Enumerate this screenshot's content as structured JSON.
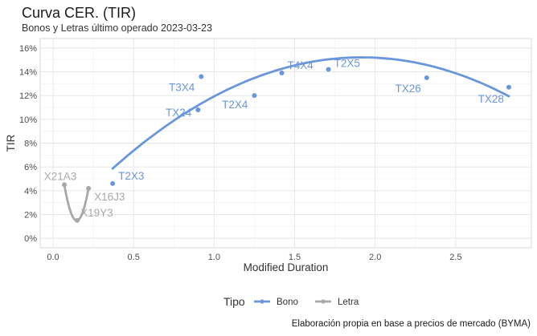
{
  "chart_data": {
    "type": "scatter",
    "title": "Curva CER. (TIR)",
    "subtitle": "Bonos y Letras último operado 2023-03-23",
    "caption": "Elaboración propia en base a precios de mercado (BYMA)",
    "xlabel": "Modified Duration",
    "ylabel": "TIR",
    "xlim": [
      -0.08,
      2.97
    ],
    "ylim": [
      -0.008,
      0.168
    ],
    "x_ticks": [
      0.0,
      0.5,
      1.0,
      1.5,
      2.0,
      2.5
    ],
    "x_tick_labels": [
      "0.0",
      "0.5",
      "1.0",
      "1.5",
      "2.0",
      "2.5"
    ],
    "y_ticks": [
      0.0,
      0.02,
      0.04,
      0.06,
      0.08,
      0.1,
      0.12,
      0.14,
      0.16
    ],
    "y_tick_labels": [
      "0%",
      "2%",
      "4%",
      "6%",
      "8%",
      "10%",
      "12%",
      "14%",
      "16%"
    ],
    "grid": true,
    "legend": {
      "title": "Tipo",
      "placement": "bottom",
      "entries": [
        "Bono",
        "Letra"
      ]
    },
    "colors": {
      "Bono": "#6a96dc",
      "Letra": "#a8a8a8"
    },
    "series": [
      {
        "name": "Bono",
        "points": [
          {
            "label": "T2X3",
            "x": 0.37,
            "y": 0.046
          },
          {
            "label": "TX24",
            "x": 0.9,
            "y": 0.108
          },
          {
            "label": "T3X4",
            "x": 0.92,
            "y": 0.136
          },
          {
            "label": "T2X4",
            "x": 1.25,
            "y": 0.12
          },
          {
            "label": "T4X4",
            "x": 1.42,
            "y": 0.139
          },
          {
            "label": "T2X5",
            "x": 1.71,
            "y": 0.142
          },
          {
            "label": "TX26",
            "x": 2.32,
            "y": 0.135
          },
          {
            "label": "TX28",
            "x": 2.83,
            "y": 0.127
          }
        ],
        "fit": {
          "type": "quadratic",
          "x_range": [
            0.37,
            2.83
          ],
          "y_at": [
            [
              0.37,
              0.0575
            ],
            [
              1.25,
              0.139
            ],
            [
              1.9,
              0.148
            ],
            [
              2.83,
              0.1205
            ]
          ]
        }
      },
      {
        "name": "Letra",
        "points": [
          {
            "label": "X21A3",
            "x": 0.07,
            "y": 0.045
          },
          {
            "label": "X19Y3",
            "x": 0.15,
            "y": 0.015
          },
          {
            "label": "X16J3",
            "x": 0.22,
            "y": 0.042
          }
        ],
        "fit": {
          "type": "quadratic",
          "x_range": [
            0.07,
            0.22
          ],
          "y_at": [
            [
              0.07,
              0.045
            ],
            [
              0.15,
              0.015
            ],
            [
              0.22,
              0.042
            ]
          ]
        }
      }
    ]
  }
}
